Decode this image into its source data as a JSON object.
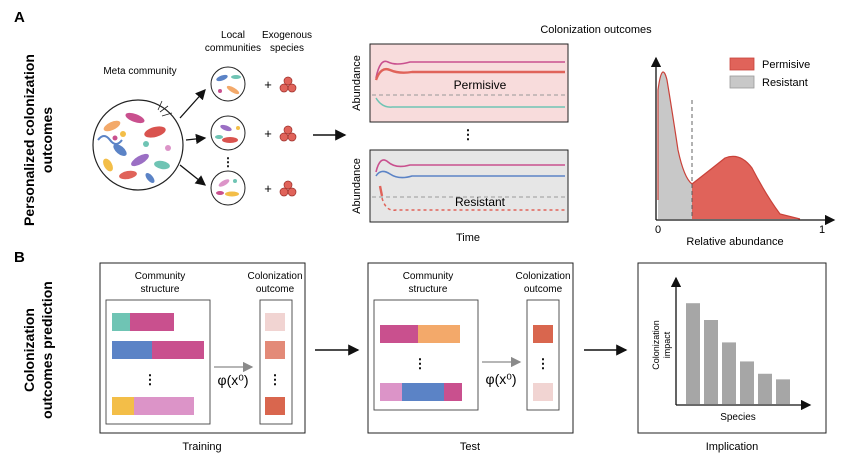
{
  "panel_a": {
    "letter": "A",
    "side_label_line1": "Personalized colonization",
    "side_label_line2": "outcomes",
    "meta_community": "Meta community",
    "local_communities_line1": "Local",
    "local_communities_line2": "communities",
    "exogenous_line1": "Exogenous",
    "exogenous_line2": "species",
    "plus": "+",
    "ellipsis": "⋮",
    "abundance_label": "Abundance",
    "permissive_label": "Permisive",
    "resistant_label": "Resistant",
    "time_label": "Time",
    "outcomes_title": "Colonization outcomes",
    "legend_permissive": "Permisive",
    "legend_resistant": "Resistant",
    "x_axis_label": "Relative abundance",
    "x_tick_0": "0",
    "x_tick_1": "1"
  },
  "panel_b": {
    "letter": "B",
    "side_label_line1": "Colonization",
    "side_label_line2": "outcomes prediction",
    "community_structure_line1": "Community",
    "community_structure_line2": "structure",
    "colonization_outcome_line1": "Colonization",
    "colonization_outcome_line2": "outcome",
    "phi_label": "φ(x⁰)",
    "ellipsis": "⋮",
    "training_label": "Training",
    "test_label": "Test",
    "implication_label": "Implication",
    "impact_ylabel_line1": "Colonization",
    "impact_ylabel_line2": "impact",
    "species_label": "Species"
  },
  "colors": {
    "permissive": "#e0635a",
    "resistant": "#c8c8c8",
    "permissive_bg": "#f8dcdc",
    "resistant_bg": "#e6e6e6",
    "teal": "#6fc4b4",
    "magenta": "#c9508e",
    "blue": "#5b83c6",
    "orange": "#f3a96a",
    "yellow": "#f3be48",
    "pink": "#dc94c8",
    "bar_gray": "#a6a6a6"
  },
  "implication_bars": [
    0.9,
    0.75,
    0.55,
    0.38,
    0.27,
    0.22
  ]
}
